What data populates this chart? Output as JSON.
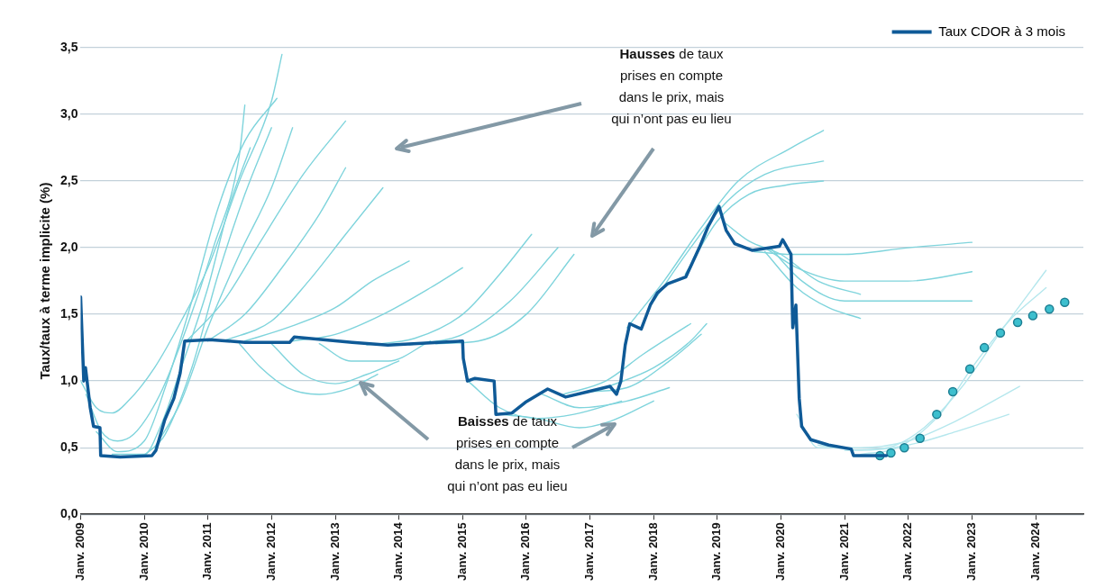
{
  "chart_data": {
    "type": "line",
    "ylabel": "Taux/taux à terme implicite (%)",
    "xlim": [
      "2009-01",
      "2024-10"
    ],
    "xticks": [
      {
        "value": "2009-01",
        "label": "Janv. 2009"
      },
      {
        "value": "2010-01",
        "label": "Janv. 2010"
      },
      {
        "value": "2011-01",
        "label": "Janv. 2011"
      },
      {
        "value": "2012-01",
        "label": "Janv. 2012"
      },
      {
        "value": "2013-01",
        "label": "Janv. 2013"
      },
      {
        "value": "2014-01",
        "label": "Janv. 2014"
      },
      {
        "value": "2015-01",
        "label": "Janv. 2015"
      },
      {
        "value": "2016-01",
        "label": "Janv. 2016"
      },
      {
        "value": "2017-01",
        "label": "Janv. 2017"
      },
      {
        "value": "2018-01",
        "label": "Janv. 2018"
      },
      {
        "value": "2019-01",
        "label": "Janv. 2019"
      },
      {
        "value": "2020-01",
        "label": "Janv. 2020"
      },
      {
        "value": "2021-01",
        "label": "Janv. 2021"
      },
      {
        "value": "2022-01",
        "label": "Janv. 2022"
      },
      {
        "value": "2023-01",
        "label": "Janv. 2023"
      },
      {
        "value": "2024-01",
        "label": "Janv. 2024"
      }
    ],
    "ylim": [
      0,
      3.5
    ],
    "yticks": [
      {
        "value": 0,
        "label": "0,0"
      },
      {
        "value": 0.5,
        "label": "0,5"
      },
      {
        "value": 1,
        "label": "1,0"
      },
      {
        "value": 1.5,
        "label": "1,5"
      },
      {
        "value": 2,
        "label": "2,0"
      },
      {
        "value": 2.5,
        "label": "2,5"
      },
      {
        "value": 3,
        "label": "3,0"
      },
      {
        "value": 3.5,
        "label": "3,5"
      }
    ],
    "grid": "y",
    "legend": "top right",
    "marker": "none",
    "line_style": "solid",
    "annotations": [
      "Hausses de taux prises en compte dans le prix, mais qui n’ont pas eu lieu",
      "Baisses de taux prises en compte dans le prix, mais qui n’ont pas eu lieu"
    ],
    "series": [
      {
        "color": "#7fd4dc",
        "x": [
          "2009-01",
          "2009-04",
          "2009-07",
          "2009-10",
          "2010-03",
          "2010-08",
          "2011-01",
          "2011-07",
          "2012-01",
          "2012-03"
        ],
        "values": [
          1.0,
          0.8,
          0.76,
          0.85,
          1.1,
          1.45,
          1.85,
          2.5,
          3.1,
          3.45
        ]
      },
      {
        "color": "#7fd4dc",
        "x": [
          "2009-02",
          "2009-05",
          "2009-08",
          "2009-11",
          "2010-04",
          "2010-09",
          "2011-02",
          "2011-07",
          "2011-08"
        ],
        "values": [
          0.9,
          0.62,
          0.55,
          0.6,
          0.9,
          1.4,
          2.0,
          2.7,
          3.07
        ]
      },
      {
        "color": "#7fd4dc",
        "x": [
          "2009-04",
          "2009-08",
          "2010-01",
          "2010-05",
          "2010-10",
          "2011-03",
          "2011-08",
          "2012-02"
        ],
        "values": [
          0.62,
          0.47,
          0.55,
          0.95,
          1.6,
          2.3,
          2.8,
          3.12
        ]
      },
      {
        "color": "#7fd4dc",
        "x": [
          "2009-07",
          "2010-01",
          "2010-04",
          "2010-08",
          "2011-01",
          "2011-05",
          "2011-09"
        ],
        "values": [
          0.45,
          0.45,
          0.65,
          1.1,
          1.7,
          2.3,
          2.75
        ]
      },
      {
        "color": "#7fd4dc",
        "x": [
          "2010-01",
          "2010-05",
          "2010-10",
          "2011-03",
          "2011-08",
          "2012-01"
        ],
        "values": [
          0.44,
          0.6,
          1.1,
          1.8,
          2.4,
          2.9
        ]
      },
      {
        "color": "#7fd4dc",
        "x": [
          "2010-03",
          "2010-08",
          "2011-01",
          "2011-07",
          "2012-01",
          "2012-05"
        ],
        "values": [
          0.5,
          0.85,
          1.4,
          1.95,
          2.45,
          2.9
        ]
      },
      {
        "color": "#7fd4dc",
        "x": [
          "2010-09",
          "2011-04",
          "2011-11",
          "2012-07",
          "2013-03"
        ],
        "values": [
          1.3,
          1.6,
          2.05,
          2.55,
          2.95
        ]
      },
      {
        "color": "#7fd4dc",
        "x": [
          "2011-01",
          "2011-08",
          "2012-03",
          "2012-10",
          "2013-03"
        ],
        "values": [
          1.3,
          1.5,
          1.85,
          2.25,
          2.6
        ]
      },
      {
        "color": "#7fd4dc",
        "x": [
          "2011-04",
          "2012-01",
          "2012-08",
          "2013-03",
          "2013-10"
        ],
        "values": [
          1.3,
          1.45,
          1.75,
          2.1,
          2.45
        ]
      },
      {
        "color": "#7fd4dc",
        "x": [
          "2011-08",
          "2012-04",
          "2013-01",
          "2013-08",
          "2014-03"
        ],
        "values": [
          1.3,
          1.4,
          1.55,
          1.75,
          1.9
        ]
      },
      {
        "color": "#7fd4dc",
        "x": [
          "2012-05",
          "2013-01",
          "2013-10",
          "2014-07",
          "2015-01"
        ],
        "values": [
          1.3,
          1.35,
          1.5,
          1.7,
          1.85
        ]
      },
      {
        "color": "#7fd4dc",
        "x": [
          "2011-07",
          "2011-11",
          "2012-04",
          "2012-10",
          "2013-04",
          "2013-09"
        ],
        "values": [
          1.28,
          1.1,
          0.95,
          0.9,
          0.95,
          1.05
        ]
      },
      {
        "color": "#7fd4dc",
        "x": [
          "2012-01",
          "2012-07",
          "2013-01",
          "2013-07",
          "2014-01"
        ],
        "values": [
          1.28,
          1.05,
          0.98,
          1.05,
          1.15
        ]
      },
      {
        "color": "#7fd4dc",
        "x": [
          "2012-10",
          "2013-04",
          "2013-11",
          "2014-07"
        ],
        "values": [
          1.28,
          1.15,
          1.15,
          1.3
        ]
      },
      {
        "color": "#7fd4dc",
        "x": [
          "2013-07",
          "2014-04",
          "2015-01",
          "2015-08",
          "2016-02"
        ],
        "values": [
          1.27,
          1.32,
          1.5,
          1.8,
          2.1
        ]
      },
      {
        "color": "#7fd4dc",
        "x": [
          "2014-03",
          "2015-01",
          "2015-10",
          "2016-07"
        ],
        "values": [
          1.27,
          1.35,
          1.6,
          2.0
        ]
      },
      {
        "color": "#7fd4dc",
        "x": [
          "2014-08",
          "2015-04",
          "2016-01",
          "2016-10"
        ],
        "values": [
          1.28,
          1.3,
          1.5,
          1.95
        ]
      },
      {
        "color": "#7fd4dc",
        "x": [
          "2015-02",
          "2015-08",
          "2016-03",
          "2016-10",
          "2017-07"
        ],
        "values": [
          1.0,
          0.8,
          0.72,
          0.75,
          0.85
        ]
      },
      {
        "color": "#7fd4dc",
        "x": [
          "2015-08",
          "2016-03",
          "2016-11",
          "2017-05",
          "2018-01"
        ],
        "values": [
          0.75,
          0.72,
          0.65,
          0.7,
          0.85
        ]
      },
      {
        "color": "#7fd4dc",
        "x": [
          "2016-04",
          "2016-11",
          "2017-08",
          "2018-04"
        ],
        "values": [
          0.9,
          0.8,
          0.85,
          0.95
        ]
      },
      {
        "color": "#7fd4dc",
        "x": [
          "2016-08",
          "2017-04",
          "2017-11",
          "2018-08"
        ],
        "values": [
          0.9,
          1.0,
          1.2,
          1.43
        ]
      },
      {
        "color": "#7fd4dc",
        "x": [
          "2017-01",
          "2017-08",
          "2018-04",
          "2018-10"
        ],
        "values": [
          0.92,
          0.95,
          1.15,
          1.35
        ]
      },
      {
        "color": "#7fd4dc",
        "x": [
          "2017-04",
          "2018-01",
          "2018-08",
          "2018-11"
        ],
        "values": [
          0.95,
          1.1,
          1.3,
          1.43
        ]
      },
      {
        "color": "#7fd4dc",
        "x": [
          "2017-08",
          "2018-03",
          "2018-10",
          "2019-05",
          "2020-03",
          "2020-09"
        ],
        "values": [
          1.4,
          1.75,
          2.15,
          2.5,
          2.75,
          2.88
        ]
      },
      {
        "color": "#7fd4dc",
        "x": [
          "2018-01",
          "2018-08",
          "2019-03",
          "2019-10",
          "2020-09"
        ],
        "values": [
          1.6,
          2.0,
          2.35,
          2.55,
          2.65
        ]
      },
      {
        "color": "#7fd4dc",
        "x": [
          "2018-07",
          "2019-01",
          "2019-07",
          "2020-02",
          "2020-09"
        ],
        "values": [
          1.8,
          2.2,
          2.4,
          2.47,
          2.5
        ]
      },
      {
        "color": "#7fd4dc",
        "x": [
          "2019-02",
          "2019-07",
          "2020-01",
          "2020-08",
          "2021-04"
        ],
        "values": [
          2.2,
          2.05,
          1.95,
          1.75,
          1.65
        ]
      },
      {
        "color": "#7fd4dc",
        "x": [
          "2019-08",
          "2020-03",
          "2021-01",
          "2022-01",
          "2023-01"
        ],
        "values": [
          1.97,
          1.95,
          1.95,
          2.0,
          2.04
        ]
      },
      {
        "color": "#7fd4dc",
        "x": [
          "2019-10",
          "2020-04",
          "2021-01",
          "2022-01",
          "2023-01"
        ],
        "values": [
          2.0,
          1.85,
          1.75,
          1.75,
          1.82
        ]
      },
      {
        "color": "#7fd4dc",
        "x": [
          "2019-11",
          "2020-05",
          "2021-01",
          "2022-01",
          "2023-01"
        ],
        "values": [
          2.0,
          1.75,
          1.6,
          1.6,
          1.6
        ]
      },
      {
        "color": "#7fd4dc",
        "x": [
          "2019-10",
          "2020-04",
          "2020-10",
          "2021-04"
        ],
        "values": [
          1.97,
          1.7,
          1.55,
          1.47
        ]
      },
      {
        "color": "#b5e7ed",
        "x": [
          "2020-04",
          "2020-08",
          "2021-04",
          "2022-01",
          "2022-10",
          "2023-10"
        ],
        "values": [
          0.75,
          0.5,
          0.5,
          0.55,
          0.7,
          0.96
        ]
      },
      {
        "color": "#b5e7ed",
        "x": [
          "2020-08",
          "2021-04",
          "2022-01",
          "2022-10",
          "2023-08"
        ],
        "values": [
          0.52,
          0.48,
          0.52,
          0.62,
          0.75
        ]
      },
      {
        "color": "#b5e7ed",
        "x": [
          "2021-01",
          "2021-09",
          "2022-04",
          "2022-11",
          "2023-07",
          "2024-03"
        ],
        "values": [
          0.48,
          0.5,
          0.65,
          0.95,
          1.4,
          1.83
        ]
      },
      {
        "color": "#b5e7ed",
        "x": [
          "2021-04",
          "2021-11",
          "2022-07",
          "2023-01",
          "2023-08",
          "2024-03"
        ],
        "values": [
          0.45,
          0.5,
          0.75,
          1.1,
          1.45,
          1.7
        ]
      },
      {
        "name": "Taux CDOR à 3 mois",
        "color": "#0f5a97",
        "x": [
          "2009-01-01",
          "2009-01-19",
          "2009-01-29",
          "2009-02-25",
          "2009-03-16",
          "2009-04-22",
          "2009-04-26",
          "2009-08-17",
          "2010-02-14",
          "2010-03-09",
          "2010-04-29",
          "2010-06-20",
          "2010-07-26",
          "2010-08-21",
          "2011-01-11",
          "2011-08-03",
          "2012-04-15",
          "2012-05-10",
          "2013-04-08",
          "2013-10-29",
          "2015-01-01",
          "2015-01-05",
          "2015-01-29",
          "2015-03-13",
          "2015-07-01",
          "2015-07-11",
          "2015-10-11",
          "2015-12-27",
          "2016-05-03",
          "2016-08-14",
          "2016-12-20",
          "2017-04-26",
          "2017-06-02",
          "2017-06-27",
          "2017-07-22",
          "2017-08-17",
          "2017-10-22",
          "2017-12-13",
          "2018-01-22",
          "2018-03-23",
          "2018-07-04",
          "2018-09-20",
          "2018-11-10",
          "2019-01-11",
          "2019-02-21",
          "2019-04-11",
          "2019-07-22",
          "2019-12-23",
          "2020-01-11",
          "2020-02-28",
          "2020-03-09",
          "2020-03-27",
          "2020-04-15",
          "2020-04-29",
          "2020-06-20",
          "2020-10-01",
          "2021-02-07",
          "2021-02-21",
          "2021-08-28"
        ],
        "values": [
          1.63,
          1.0,
          1.1,
          0.8,
          0.66,
          0.65,
          0.44,
          0.43,
          0.44,
          0.48,
          0.71,
          0.87,
          1.06,
          1.3,
          1.31,
          1.29,
          1.29,
          1.33,
          1.29,
          1.27,
          1.3,
          1.17,
          1.0,
          1.02,
          1.0,
          0.75,
          0.76,
          0.84,
          0.94,
          0.88,
          0.92,
          0.96,
          0.9,
          1.0,
          1.27,
          1.43,
          1.39,
          1.57,
          1.66,
          1.73,
          1.78,
          2.0,
          2.16,
          2.31,
          2.13,
          2.03,
          1.98,
          2.01,
          2.06,
          1.95,
          1.4,
          1.57,
          0.87,
          0.66,
          0.56,
          0.52,
          0.49,
          0.44,
          0.44
        ]
      },
      {
        "type": "scatter",
        "marker": "circle",
        "color": "#3dbfce",
        "x": [
          "2021-07-22",
          "2021-09-23",
          "2021-12-09",
          "2022-03-09",
          "2022-06-13",
          "2022-09-13",
          "2022-12-20",
          "2023-03-13",
          "2023-06-13",
          "2023-09-20",
          "2023-12-16",
          "2024-03-20",
          "2024-06-16"
        ],
        "values": [
          0.44,
          0.46,
          0.5,
          0.57,
          0.75,
          0.92,
          1.09,
          1.25,
          1.36,
          1.44,
          1.49,
          1.54,
          1.59
        ]
      }
    ]
  }
}
